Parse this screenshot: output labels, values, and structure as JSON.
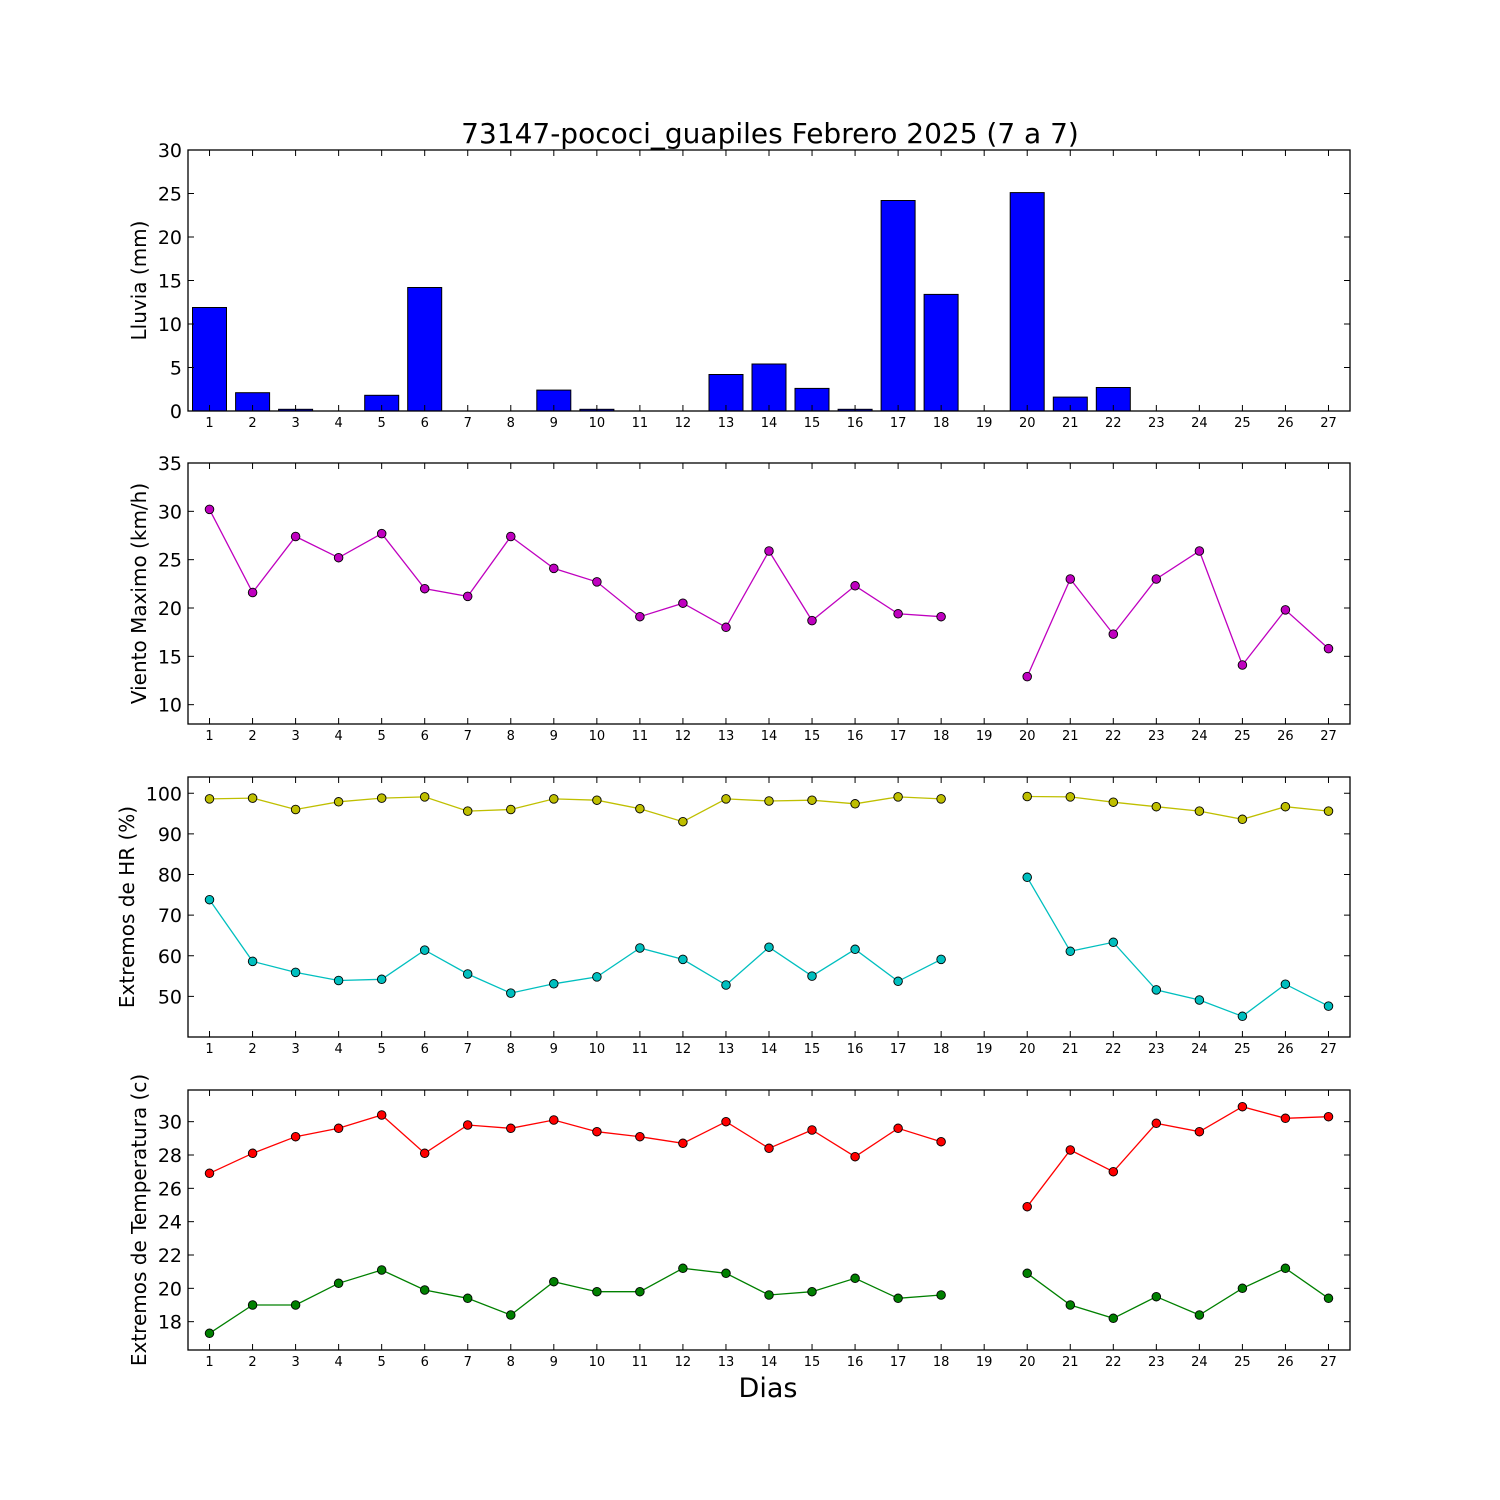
{
  "title": "73147-pococi_guapiles Febrero 2025  (7 a 7)",
  "xlabel": "Dias",
  "chart_data": [
    {
      "type": "bar",
      "ylabel": "Lluvia (mm)",
      "ylim": [
        0,
        30
      ],
      "yticks": [
        0,
        5,
        10,
        15,
        20,
        25,
        30
      ],
      "x": [
        1,
        2,
        3,
        4,
        5,
        6,
        7,
        8,
        9,
        10,
        11,
        12,
        13,
        14,
        15,
        16,
        17,
        18,
        19,
        20,
        21,
        22,
        23,
        24,
        25,
        26,
        27
      ],
      "series": [
        {
          "color": "#0000ff",
          "values": [
            11.9,
            2.1,
            0.2,
            0,
            1.8,
            14.2,
            0,
            0,
            2.4,
            0.2,
            0,
            0,
            4.2,
            5.4,
            2.6,
            0.2,
            24.2,
            13.4,
            null,
            25.1,
            1.6,
            2.7,
            0,
            0,
            0,
            0,
            0
          ]
        }
      ]
    },
    {
      "type": "line",
      "ylabel": "Viento Maximo (km/h)",
      "ylim": [
        8,
        35
      ],
      "yticks": [
        10,
        15,
        20,
        25,
        30,
        35
      ],
      "x": [
        1,
        2,
        3,
        4,
        5,
        6,
        7,
        8,
        9,
        10,
        11,
        12,
        13,
        14,
        15,
        16,
        17,
        18,
        19,
        20,
        21,
        22,
        23,
        24,
        25,
        26,
        27
      ],
      "series": [
        {
          "color": "#bf00bf",
          "values": [
            30.2,
            21.6,
            27.4,
            25.2,
            27.7,
            22.0,
            21.2,
            27.4,
            24.1,
            22.7,
            19.1,
            20.5,
            18.0,
            25.9,
            18.7,
            22.3,
            19.4,
            19.1,
            null,
            12.9,
            23.0,
            17.3,
            23.0,
            25.9,
            14.1,
            19.8,
            15.8
          ]
        }
      ]
    },
    {
      "type": "line",
      "ylabel": "Extremos de HR (%)",
      "ylim": [
        40,
        104
      ],
      "yticks": [
        50,
        60,
        70,
        80,
        90,
        100
      ],
      "x": [
        1,
        2,
        3,
        4,
        5,
        6,
        7,
        8,
        9,
        10,
        11,
        12,
        13,
        14,
        15,
        16,
        17,
        18,
        19,
        20,
        21,
        22,
        23,
        24,
        25,
        26,
        27
      ],
      "series": [
        {
          "color": "#bfbf00",
          "values": [
            98.6,
            98.8,
            96.0,
            97.9,
            98.8,
            99.1,
            95.6,
            96.0,
            98.6,
            98.3,
            96.2,
            93.0,
            98.6,
            98.1,
            98.3,
            97.4,
            99.1,
            98.6,
            null,
            99.2,
            99.1,
            97.8,
            96.7,
            95.6,
            93.6,
            96.7,
            95.6
          ]
        },
        {
          "color": "#00bfbf",
          "values": [
            73.8,
            58.6,
            55.9,
            53.9,
            54.2,
            61.4,
            55.5,
            50.8,
            53.1,
            54.8,
            61.9,
            59.1,
            52.8,
            62.1,
            55.0,
            61.6,
            53.7,
            59.1,
            null,
            79.3,
            61.1,
            63.3,
            51.6,
            49.1,
            45.1,
            53.0,
            47.6
          ]
        }
      ]
    },
    {
      "type": "line",
      "ylabel": "Extremos de Temperatura (c)",
      "ylim": [
        16.3,
        31.9
      ],
      "yticks": [
        18,
        20,
        22,
        24,
        26,
        28,
        30
      ],
      "x": [
        1,
        2,
        3,
        4,
        5,
        6,
        7,
        8,
        9,
        10,
        11,
        12,
        13,
        14,
        15,
        16,
        17,
        18,
        19,
        20,
        21,
        22,
        23,
        24,
        25,
        26,
        27
      ],
      "series": [
        {
          "color": "#ff0000",
          "values": [
            26.9,
            28.1,
            29.1,
            29.6,
            30.4,
            28.1,
            29.8,
            29.6,
            30.1,
            29.4,
            29.1,
            28.7,
            30.0,
            28.4,
            29.5,
            27.9,
            29.6,
            28.8,
            null,
            24.9,
            28.3,
            27.0,
            29.9,
            29.4,
            30.9,
            30.2,
            30.3
          ]
        },
        {
          "color": "#008000",
          "values": [
            17.3,
            19.0,
            19.0,
            20.3,
            21.1,
            19.9,
            19.4,
            18.4,
            20.4,
            19.8,
            19.8,
            21.2,
            20.9,
            19.6,
            19.8,
            20.6,
            19.4,
            19.6,
            null,
            20.9,
            19.0,
            18.2,
            19.5,
            18.4,
            20.0,
            21.2,
            19.4
          ]
        }
      ]
    }
  ]
}
